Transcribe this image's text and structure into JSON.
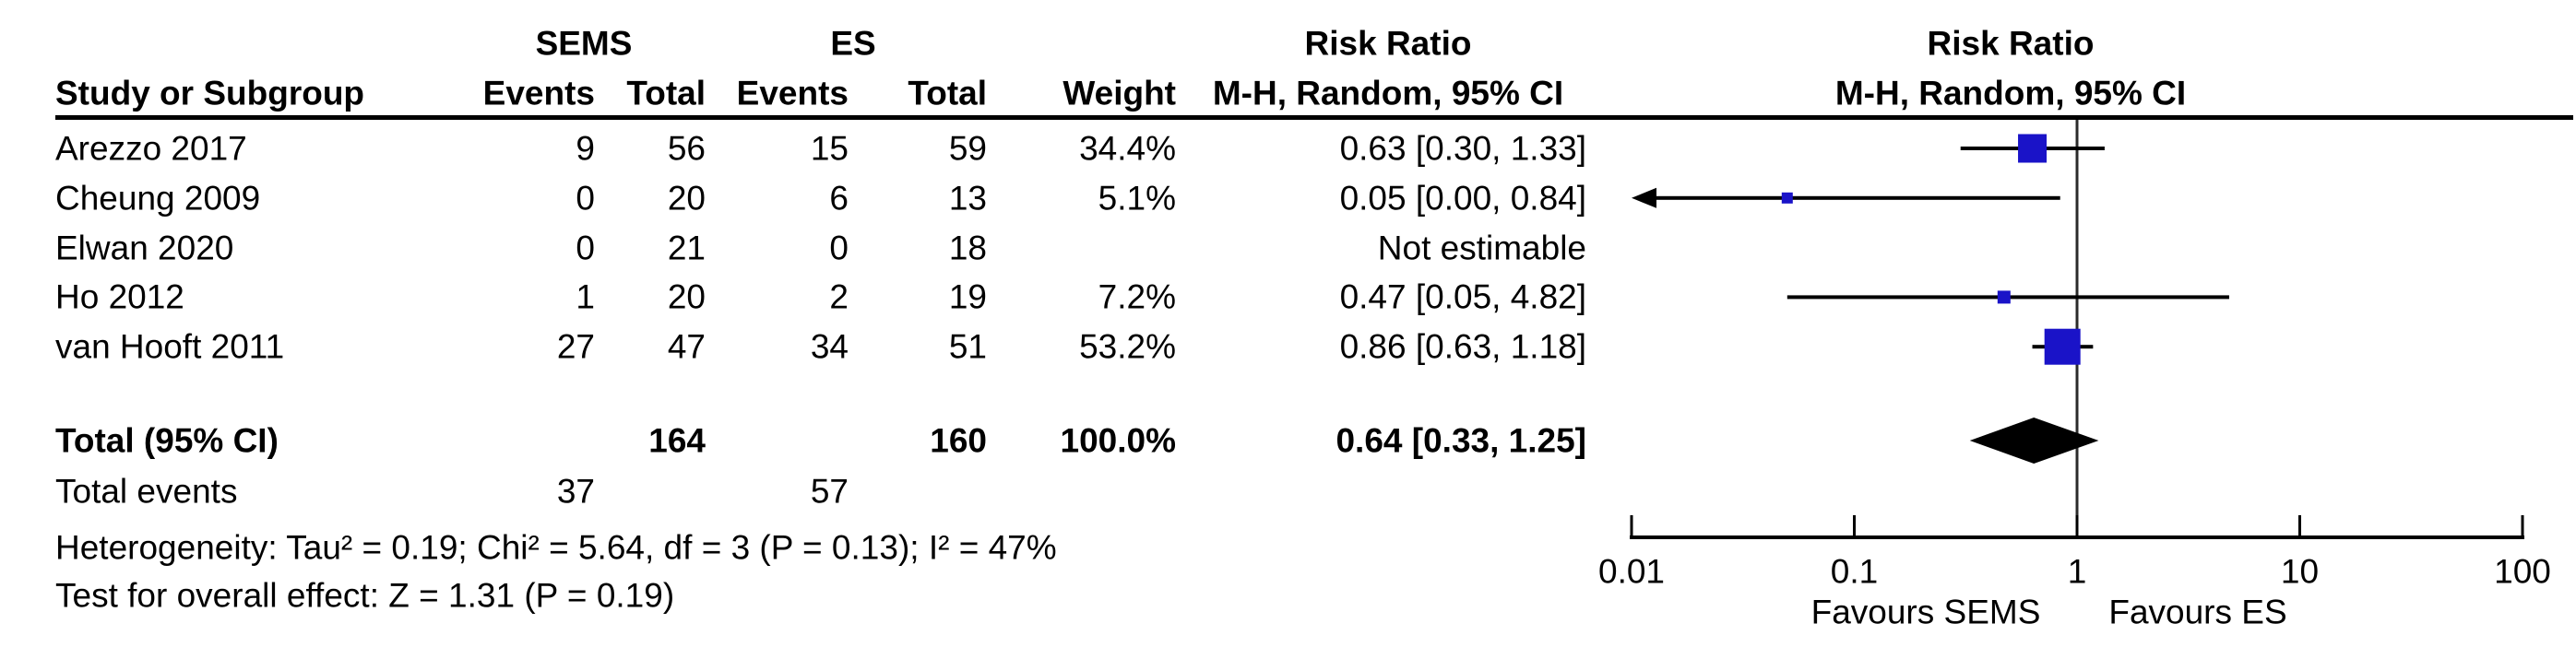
{
  "table": {
    "group_headers": {
      "sems": "SEMS",
      "es": "ES",
      "risk_ratio": "Risk Ratio"
    },
    "column_headers": {
      "study": "Study or Subgroup",
      "events": "Events",
      "total": "Total",
      "weight": "Weight",
      "mh_ci": "M-H, Random, 95% CI"
    },
    "plot_headers": {
      "risk_ratio": "Risk Ratio",
      "mh_ci": "M-H, Random, 95% CI"
    },
    "rows": [
      {
        "study": "Arezzo 2017",
        "events1": "9",
        "total1": "56",
        "events2": "15",
        "total2": "59",
        "weight": "34.4%",
        "ci": "0.63 [0.30, 1.33]"
      },
      {
        "study": "Cheung 2009",
        "events1": "0",
        "total1": "20",
        "events2": "6",
        "total2": "13",
        "weight": "5.1%",
        "ci": "0.05 [0.00, 0.84]"
      },
      {
        "study": "Elwan 2020",
        "events1": "0",
        "total1": "21",
        "events2": "0",
        "total2": "18",
        "weight": "",
        "ci": "Not estimable"
      },
      {
        "study": "Ho 2012",
        "events1": "1",
        "total1": "20",
        "events2": "2",
        "total2": "19",
        "weight": "7.2%",
        "ci": "0.47 [0.05, 4.82]"
      },
      {
        "study": "van Hooft 2011",
        "events1": "27",
        "total1": "47",
        "events2": "34",
        "total2": "51",
        "weight": "53.2%",
        "ci": "0.86 [0.63, 1.18]"
      }
    ],
    "total_row": {
      "label": "Total (95% CI)",
      "total1": "164",
      "total2": "160",
      "weight": "100.0%",
      "ci": "0.64 [0.33, 1.25]"
    },
    "total_events": {
      "label": "Total events",
      "events1": "37",
      "events2": "57"
    },
    "heterogeneity": "Heterogeneity: Tau² = 0.19; Chi² = 5.64, df = 3 (P = 0.13); I² = 47%",
    "overall_effect": "Test for overall effect: Z = 1.31 (P = 0.19)"
  },
  "chart_data": {
    "type": "forest",
    "x_scale": "log",
    "xlim": [
      0.01,
      100
    ],
    "axis_ticks": [
      0.01,
      0.1,
      1,
      10,
      100
    ],
    "axis_tick_labels": [
      "0.01",
      "0.1",
      "1",
      "10",
      "100"
    ],
    "null_line": 1,
    "favours_left": "Favours SEMS",
    "favours_right": "Favours ES",
    "marker_color": "#1a13c8",
    "line_color": "#000000",
    "studies": [
      {
        "name": "Arezzo 2017",
        "rr": 0.63,
        "ci_low": 0.3,
        "ci_high": 1.33,
        "weight_pct": 34.4
      },
      {
        "name": "Cheung 2009",
        "rr": 0.05,
        "ci_low": 0.0,
        "ci_high": 0.84,
        "weight_pct": 5.1
      },
      {
        "name": "Elwan 2020",
        "rr": null,
        "ci_low": null,
        "ci_high": null,
        "weight_pct": null,
        "not_estimable": true
      },
      {
        "name": "Ho 2012",
        "rr": 0.47,
        "ci_low": 0.05,
        "ci_high": 4.82,
        "weight_pct": 7.2
      },
      {
        "name": "van Hooft 2011",
        "rr": 0.86,
        "ci_low": 0.63,
        "ci_high": 1.18,
        "weight_pct": 53.2
      }
    ],
    "summary": {
      "label": "Total (95% CI)",
      "rr": 0.64,
      "ci_low": 0.33,
      "ci_high": 1.25
    }
  }
}
